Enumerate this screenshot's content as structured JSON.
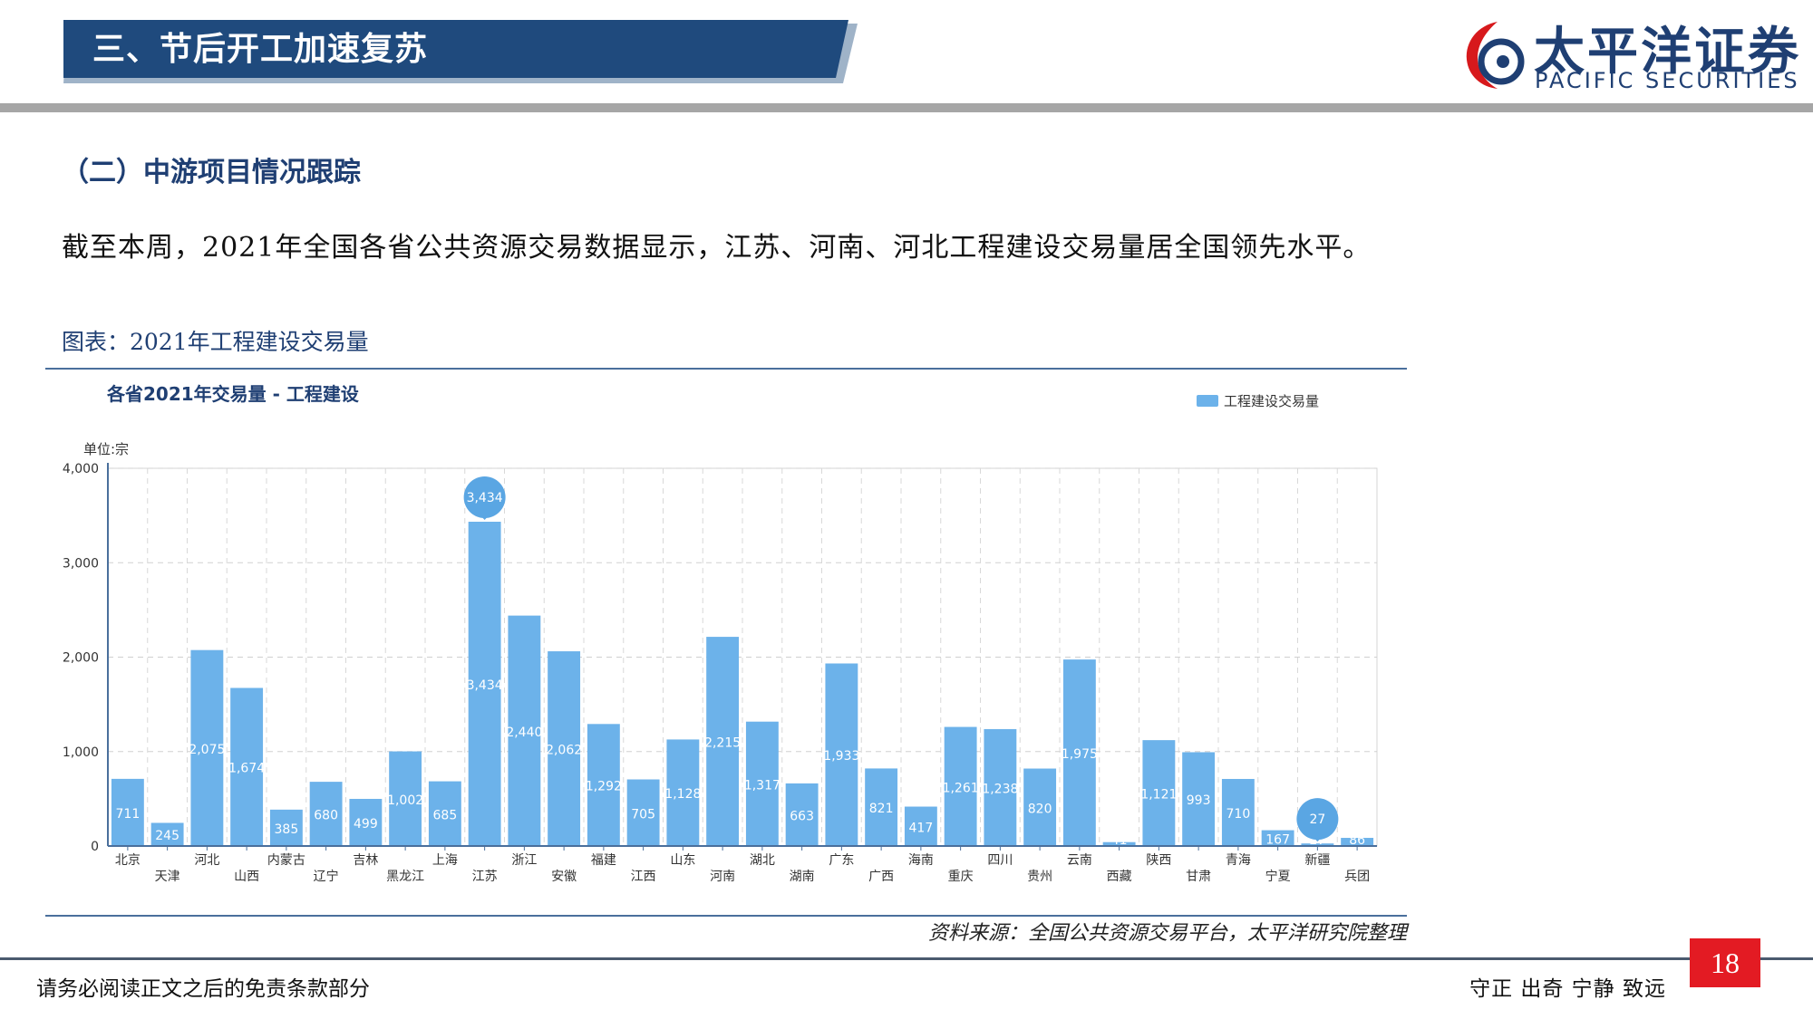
{
  "header": {
    "banner_title": "三、节后开工加速复苏",
    "logo_cn": "太平洋证券",
    "logo_en": "PACIFIC SECURITIES"
  },
  "section_title": "（二）中游项目情况跟踪",
  "body_text": "截至本周，2021年全国各省公共资源交易数据显示，江苏、河南、河北工程建设交易量居全国领先水平。",
  "figure_title": "图表：2021年工程建设交易量",
  "source_text": "资料来源：全国公共资源交易平台，太平洋研究院整理",
  "footer": {
    "disclaimer": "请务必阅读正文之后的免责条款部分",
    "motto": "守正  出奇  宁静  致远",
    "page_number": "18"
  },
  "colors": {
    "banner": "#1f4a7d",
    "brand_red": "#d7191c",
    "bar": "#6cb2ea",
    "title_blue": "#1f3f73"
  },
  "chart_data": {
    "type": "bar",
    "title": "各省2021年交易量 - 工程建设",
    "unit_label": "单位:宗",
    "legend": "工程建设交易量",
    "legend_position": "top-right",
    "grid": true,
    "ylim": [
      0,
      4000
    ],
    "yticks": [
      "0",
      "1,000",
      "2,000",
      "3,000",
      "4,000"
    ],
    "categories": [
      "北京",
      "天津",
      "河北",
      "山西",
      "内蒙古",
      "辽宁",
      "吉林",
      "黑龙江",
      "上海",
      "江苏",
      "浙江",
      "安徽",
      "福建",
      "江西",
      "山东",
      "河南",
      "湖北",
      "湖南",
      "广东",
      "广西",
      "海南",
      "重庆",
      "四川",
      "贵州",
      "云南",
      "西藏",
      "陕西",
      "甘肃",
      "青海",
      "宁夏",
      "新疆",
      "兵团"
    ],
    "values": [
      711,
      245,
      2075,
      1674,
      385,
      680,
      499,
      1002,
      685,
      3434,
      2440,
      2062,
      1292,
      705,
      1128,
      2215,
      1317,
      663,
      1933,
      821,
      417,
      1261,
      1238,
      820,
      1975,
      41,
      1121,
      993,
      710,
      167,
      27,
      86
    ],
    "labels": [
      "711",
      "245",
      "2,075",
      "1,674",
      "385",
      "680",
      "499",
      "1,002",
      "685",
      "3,434",
      "2,440",
      "2,062",
      "1,292",
      "705",
      "1,128",
      "2,215",
      "1,317",
      "663",
      "1,933",
      "821",
      "417",
      "1,261",
      "1,238",
      "820",
      "1,975",
      "41",
      "1,121",
      "993",
      "710",
      "167",
      "27",
      "86"
    ],
    "markers": [
      {
        "category": "江苏",
        "label": "3,434"
      },
      {
        "category": "新疆",
        "label": "27"
      }
    ]
  }
}
